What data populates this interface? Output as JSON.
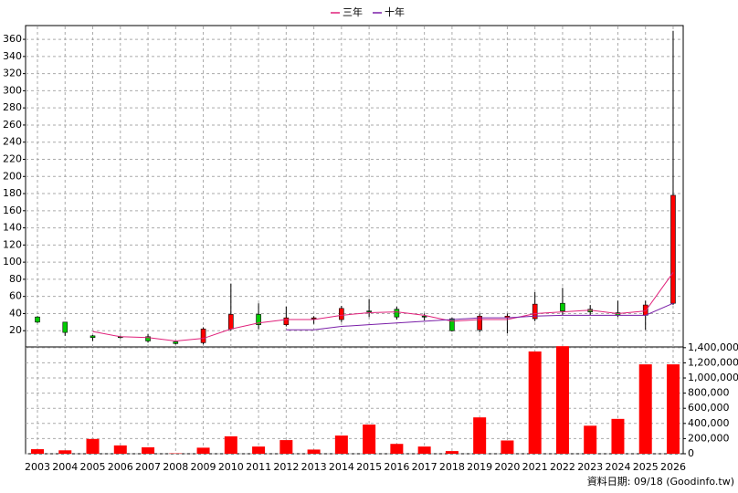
{
  "chart_data": {
    "type": "candlestick",
    "categories": [
      "2003",
      "2004",
      "2005",
      "2006",
      "2007",
      "2008",
      "2009",
      "2010",
      "2011",
      "2012",
      "2013",
      "2014",
      "2015",
      "2016",
      "2017",
      "2018",
      "2019",
      "2020",
      "2021",
      "2022",
      "2023",
      "2024",
      "2025",
      "2026"
    ],
    "open": [
      36,
      30,
      14,
      13,
      13,
      7,
      6,
      22,
      39,
      27,
      34,
      33,
      43,
      45,
      37,
      34,
      21,
      35,
      34,
      52,
      45,
      41,
      38,
      52
    ],
    "high": [
      37,
      30,
      15,
      14,
      16,
      7,
      24,
      75,
      52,
      48,
      37,
      49,
      57,
      48,
      40,
      35,
      40,
      40,
      65,
      70,
      50,
      55,
      55,
      370
    ],
    "low": [
      29,
      14,
      8,
      11,
      6,
      4,
      4,
      20,
      22,
      25,
      28,
      30,
      36,
      33,
      32,
      19,
      18,
      17,
      31,
      38,
      38,
      36,
      21,
      50
    ],
    "close": [
      30,
      18,
      12,
      12,
      8,
      5,
      22,
      39,
      27,
      35,
      35,
      46,
      42,
      36,
      36,
      20,
      37,
      37,
      51,
      43,
      42,
      38,
      50,
      178
    ],
    "up_color": "#ff0000",
    "down_color": "#00cc00",
    "series": [
      {
        "name": "三年",
        "color": "#e0207a",
        "values": [
          null,
          null,
          19,
          13,
          12,
          8,
          11,
          22,
          29,
          33,
          33,
          38,
          41,
          42,
          38,
          31,
          33,
          33,
          40,
          42,
          44,
          40,
          43,
          88
        ]
      },
      {
        "name": "十年",
        "color": "#7a1fa8",
        "values": [
          null,
          null,
          null,
          null,
          null,
          null,
          null,
          null,
          null,
          21,
          21,
          25,
          27,
          29,
          31,
          33,
          35,
          35,
          37,
          38,
          38,
          38,
          38,
          52
        ]
      }
    ],
    "ylim": [
      0,
      375
    ],
    "yticks": [
      20,
      40,
      60,
      80,
      100,
      120,
      140,
      160,
      180,
      200,
      220,
      240,
      260,
      280,
      300,
      320,
      340,
      360
    ],
    "grid": true,
    "volume": {
      "color": "#ff0000",
      "values": [
        60000,
        45000,
        195000,
        110000,
        85000,
        5000,
        80000,
        230000,
        95000,
        180000,
        55000,
        240000,
        385000,
        130000,
        95000,
        35000,
        480000,
        175000,
        1350000,
        1420000,
        370000,
        460000,
        1180000,
        1180000
      ],
      "ylim": [
        0,
        1410000
      ],
      "yticks": [
        0,
        {
          "value": 200000,
          "label": "200,000"
        },
        {
          "value": 400000,
          "label": "400,000"
        },
        {
          "value": 600000,
          "label": "600,000"
        },
        {
          "value": 800000,
          "label": "800,000"
        },
        {
          "value": 1000000,
          "label": "1,000,000"
        },
        {
          "value": 1200000,
          "label": "1,200,000"
        },
        {
          "value": 1400000,
          "label": "1,400,000"
        }
      ]
    },
    "footer": "資料日期: 09/18  (Goodinfo.tw)"
  }
}
